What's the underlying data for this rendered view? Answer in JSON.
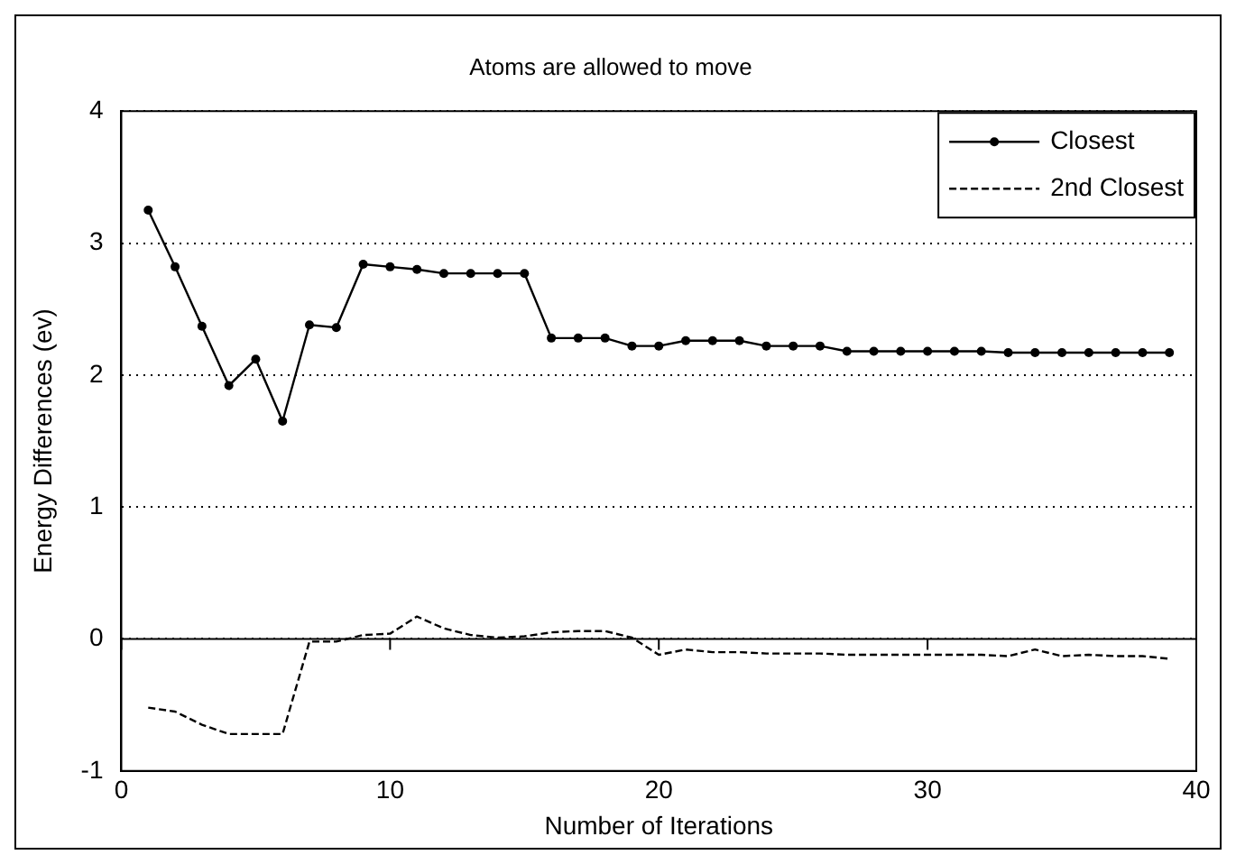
{
  "chart_data": {
    "type": "line",
    "title": "Atoms are allowed to move",
    "xlabel": "Number of Iterations",
    "ylabel": "Energy Differences (ev)",
    "x": [
      1,
      2,
      3,
      4,
      5,
      6,
      7,
      8,
      9,
      10,
      11,
      12,
      13,
      14,
      15,
      16,
      17,
      18,
      19,
      20,
      21,
      22,
      23,
      24,
      25,
      26,
      27,
      28,
      29,
      30,
      31,
      32,
      33,
      34,
      35,
      36,
      37,
      38,
      39
    ],
    "series": [
      {
        "name": "Closest",
        "color": "#000000",
        "marker": "circle",
        "line_style": "solid",
        "values": [
          3.25,
          2.82,
          2.37,
          1.92,
          2.12,
          1.65,
          2.38,
          2.36,
          2.84,
          2.82,
          2.8,
          2.77,
          2.77,
          2.77,
          2.77,
          2.28,
          2.28,
          2.28,
          2.22,
          2.22,
          2.26,
          2.26,
          2.26,
          2.22,
          2.22,
          2.22,
          2.18,
          2.18,
          2.18,
          2.18,
          2.18,
          2.18,
          2.17,
          2.17,
          2.17,
          2.17,
          2.17,
          2.17,
          2.17
        ]
      },
      {
        "name": "2nd Closest",
        "color": "#000000",
        "marker": "none",
        "line_style": "dashed",
        "values": [
          -0.52,
          -0.55,
          -0.65,
          -0.72,
          -0.72,
          -0.72,
          -0.02,
          -0.02,
          0.03,
          0.04,
          0.17,
          0.08,
          0.03,
          0.01,
          0.02,
          0.05,
          0.06,
          0.06,
          0.01,
          -0.12,
          -0.08,
          -0.1,
          -0.1,
          -0.11,
          -0.11,
          -0.11,
          -0.12,
          -0.12,
          -0.12,
          -0.12,
          -0.12,
          -0.12,
          -0.13,
          -0.08,
          -0.13,
          -0.12,
          -0.13,
          -0.13,
          -0.15
        ]
      }
    ],
    "xlim": [
      0,
      40
    ],
    "xticks": [
      0,
      10,
      20,
      30,
      40
    ],
    "ylim": [
      -1,
      4
    ],
    "yticks": [
      -1,
      0,
      1,
      2,
      3,
      4
    ],
    "grid": "y",
    "legend": "top right",
    "ref_lines": [
      {
        "axis": "y",
        "value": 0,
        "color": "#000000",
        "line_style": "solid"
      }
    ]
  }
}
